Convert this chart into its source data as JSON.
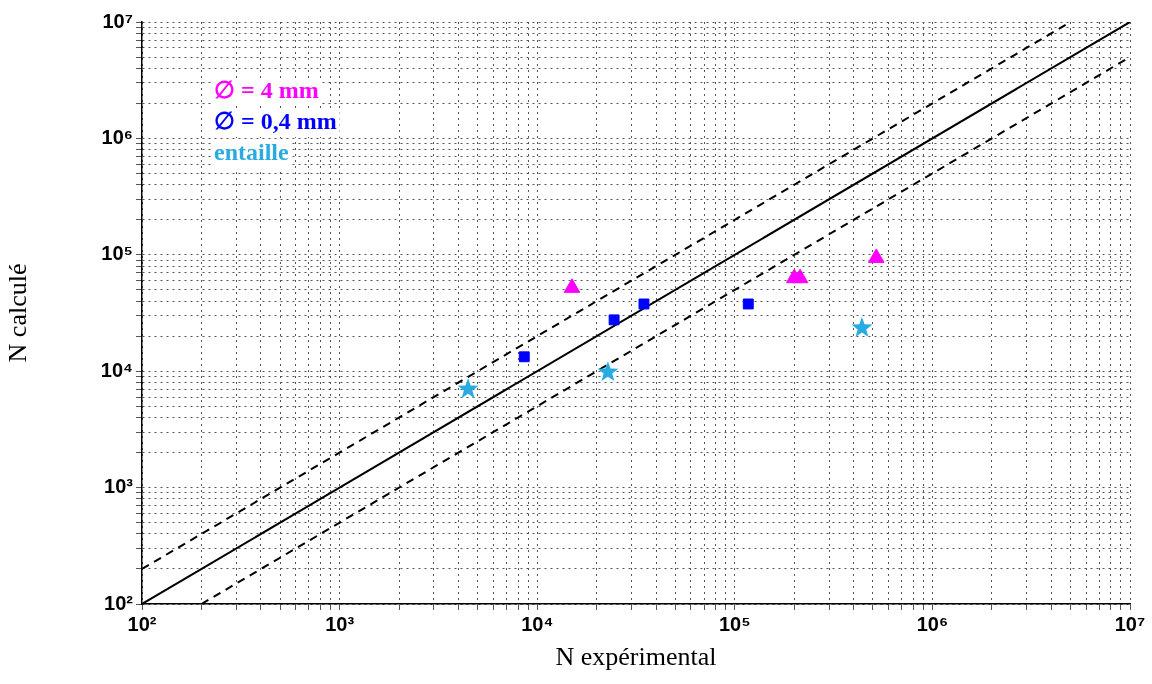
{
  "chart_data": {
    "type": "scatter",
    "xlabel": "N expérimental",
    "ylabel": "N calculé",
    "log": "xy",
    "grid": true,
    "legend": "top left",
    "xlim": [
      100,
      10000000
    ],
    "ylim": [
      100,
      10000000
    ],
    "xticks": [
      {
        "value": 100,
        "label": "10²"
      },
      {
        "value": 200,
        "label": null
      },
      {
        "value": 300,
        "label": null
      },
      {
        "value": 400,
        "label": null
      },
      {
        "value": 500,
        "label": null
      },
      {
        "value": 600,
        "label": null
      },
      {
        "value": 700,
        "label": null
      },
      {
        "value": 800,
        "label": null
      },
      {
        "value": 900,
        "label": null
      },
      {
        "value": 1000,
        "label": "10³"
      },
      {
        "value": 2000,
        "label": null
      },
      {
        "value": 3000,
        "label": null
      },
      {
        "value": 4000,
        "label": null
      },
      {
        "value": 5000,
        "label": null
      },
      {
        "value": 6000,
        "label": null
      },
      {
        "value": 7000,
        "label": null
      },
      {
        "value": 8000,
        "label": null
      },
      {
        "value": 9000,
        "label": null
      },
      {
        "value": 10000,
        "label": "10⁴"
      },
      {
        "value": 20000,
        "label": null
      },
      {
        "value": 30000,
        "label": null
      },
      {
        "value": 40000,
        "label": null
      },
      {
        "value": 50000,
        "label": null
      },
      {
        "value": 60000,
        "label": null
      },
      {
        "value": 70000,
        "label": null
      },
      {
        "value": 80000,
        "label": null
      },
      {
        "value": 90000,
        "label": null
      },
      {
        "value": 100000,
        "label": "10⁵"
      },
      {
        "value": 200000,
        "label": null
      },
      {
        "value": 300000,
        "label": null
      },
      {
        "value": 400000,
        "label": null
      },
      {
        "value": 500000,
        "label": null
      },
      {
        "value": 600000,
        "label": null
      },
      {
        "value": 700000,
        "label": null
      },
      {
        "value": 800000,
        "label": null
      },
      {
        "value": 900000,
        "label": null
      },
      {
        "value": 1000000,
        "label": "10⁶"
      },
      {
        "value": 2000000,
        "label": null
      },
      {
        "value": 3000000,
        "label": null
      },
      {
        "value": 4000000,
        "label": null
      },
      {
        "value": 5000000,
        "label": null
      },
      {
        "value": 6000000,
        "label": null
      },
      {
        "value": 7000000,
        "label": null
      },
      {
        "value": 8000000,
        "label": null
      },
      {
        "value": 9000000,
        "label": null
      },
      {
        "value": 10000000,
        "label": "10⁷"
      }
    ],
    "yticks": [
      {
        "value": 100,
        "label": "10²"
      },
      {
        "value": 200,
        "label": null
      },
      {
        "value": 300,
        "label": null
      },
      {
        "value": 400,
        "label": null
      },
      {
        "value": 500,
        "label": null
      },
      {
        "value": 600,
        "label": null
      },
      {
        "value": 700,
        "label": null
      },
      {
        "value": 800,
        "label": null
      },
      {
        "value": 900,
        "label": null
      },
      {
        "value": 1000,
        "label": "10³"
      },
      {
        "value": 2000,
        "label": null
      },
      {
        "value": 3000,
        "label": null
      },
      {
        "value": 4000,
        "label": null
      },
      {
        "value": 5000,
        "label": null
      },
      {
        "value": 6000,
        "label": null
      },
      {
        "value": 7000,
        "label": null
      },
      {
        "value": 8000,
        "label": null
      },
      {
        "value": 9000,
        "label": null
      },
      {
        "value": 10000,
        "label": "10⁴"
      },
      {
        "value": 20000,
        "label": null
      },
      {
        "value": 30000,
        "label": null
      },
      {
        "value": 40000,
        "label": null
      },
      {
        "value": 50000,
        "label": null
      },
      {
        "value": 60000,
        "label": null
      },
      {
        "value": 70000,
        "label": null
      },
      {
        "value": 80000,
        "label": null
      },
      {
        "value": 90000,
        "label": null
      },
      {
        "value": 100000,
        "label": "10⁵"
      },
      {
        "value": 200000,
        "label": null
      },
      {
        "value": 300000,
        "label": null
      },
      {
        "value": 400000,
        "label": null
      },
      {
        "value": 500000,
        "label": null
      },
      {
        "value": 600000,
        "label": null
      },
      {
        "value": 700000,
        "label": null
      },
      {
        "value": 800000,
        "label": null
      },
      {
        "value": 900000,
        "label": null
      },
      {
        "value": 1000000,
        "label": "10⁶"
      },
      {
        "value": 2000000,
        "label": null
      },
      {
        "value": 3000000,
        "label": null
      },
      {
        "value": 4000000,
        "label": null
      },
      {
        "value": 5000000,
        "label": null
      },
      {
        "value": 6000000,
        "label": null
      },
      {
        "value": 7000000,
        "label": null
      },
      {
        "value": 8000000,
        "label": null
      },
      {
        "value": 9000000,
        "label": null
      },
      {
        "value": 10000000,
        "label": "10⁷"
      }
    ],
    "series": [
      {
        "name": "∅ = 4 mm",
        "color": "#ff00ff",
        "marker": "triangle",
        "x": [
          15000,
          200000,
          214000,
          520000
        ],
        "values": [
          52000,
          63000,
          63000,
          94000
        ]
      },
      {
        "name": "∅ = 0,4 mm",
        "color": "#0000ff",
        "marker": "square",
        "x": [
          8600,
          24500,
          34700,
          117000
        ],
        "values": [
          13300,
          27600,
          37800,
          37800
        ]
      },
      {
        "name": "entaille",
        "color": "#29abe2",
        "marker": "star",
        "x": [
          4470,
          22800,
          440000
        ],
        "values": [
          7000,
          9800,
          23500
        ]
      },
      {
        "type": "line",
        "color": "#000000",
        "marker": "none",
        "line_style": "solid",
        "x": [
          100,
          10000000
        ],
        "values": [
          100,
          10000000
        ]
      },
      {
        "type": "line",
        "color": "#000000",
        "marker": "none",
        "line_style": "dashed",
        "x": [
          100,
          5000000
        ],
        "values": [
          200,
          10000000
        ]
      },
      {
        "type": "line",
        "color": "#000000",
        "marker": "none",
        "line_style": "dashed",
        "x": [
          200,
          10000000
        ],
        "values": [
          100,
          5000000
        ]
      }
    ]
  }
}
